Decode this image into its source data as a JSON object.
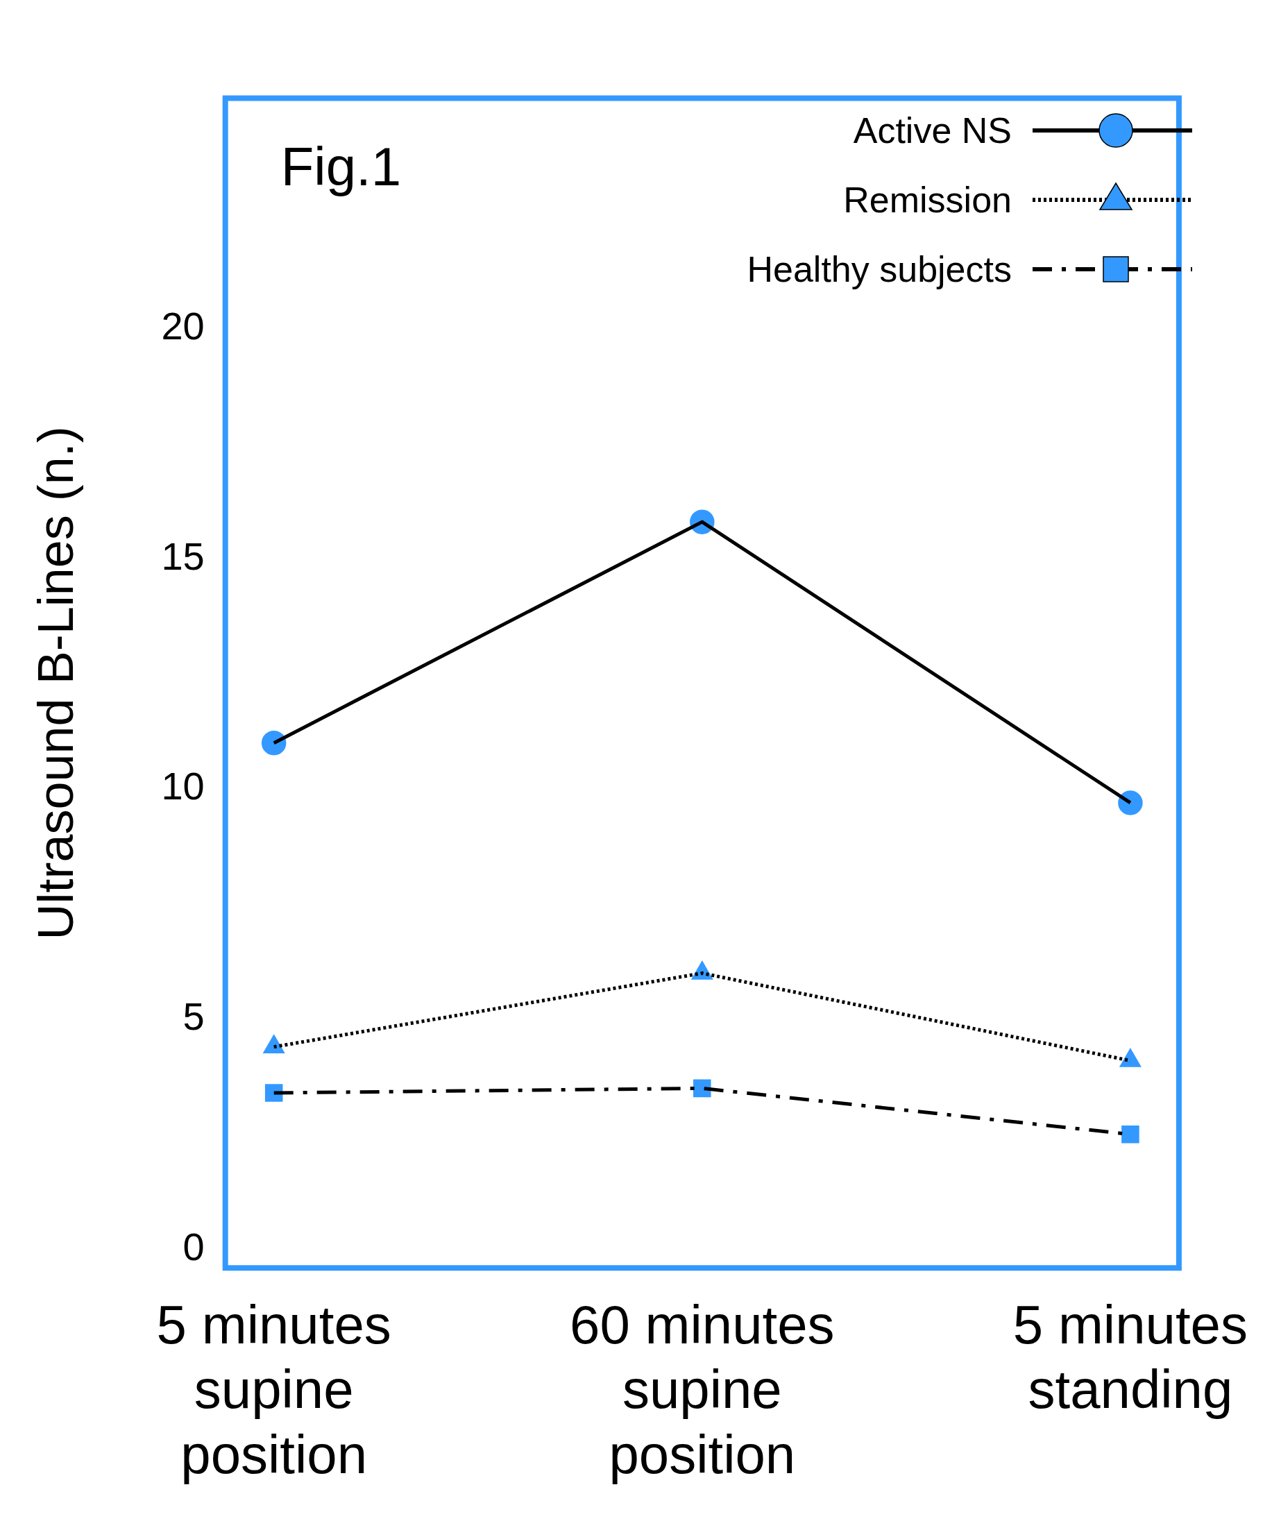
{
  "chart_data": {
    "type": "line",
    "title": "Fig.1",
    "ylabel": "Ultrasound B-Lines (n.)",
    "categories": [
      "5 minutes supine position",
      "60 minutes supine position",
      "5 minutes standing"
    ],
    "series": [
      {
        "name": "Active NS",
        "color": "#000000",
        "colors": [
          "#3399ff",
          "#3399ff",
          "#3399ff"
        ],
        "values": [
          11,
          15.8,
          9.7
        ],
        "marker": "circle",
        "line_style": "solid"
      },
      {
        "name": "Remission",
        "color": "#000000",
        "colors": [
          "#3399ff",
          "#3399ff",
          "#3399ff"
        ],
        "values": [
          4.4,
          6.0,
          4.1
        ],
        "marker": "triangle",
        "line_style": "dotted"
      },
      {
        "name": "Healthy subjects",
        "color": "#000000",
        "colors": [
          "#3399ff",
          "#3399ff",
          "#3399ff"
        ],
        "values": [
          3.4,
          3.5,
          2.5
        ],
        "marker": "square",
        "line_style": "dashed"
      }
    ],
    "ylim": [
      -0.4,
      25
    ],
    "yticks": [
      0,
      5,
      10,
      15,
      20
    ],
    "grid": false,
    "legend": "top right"
  }
}
